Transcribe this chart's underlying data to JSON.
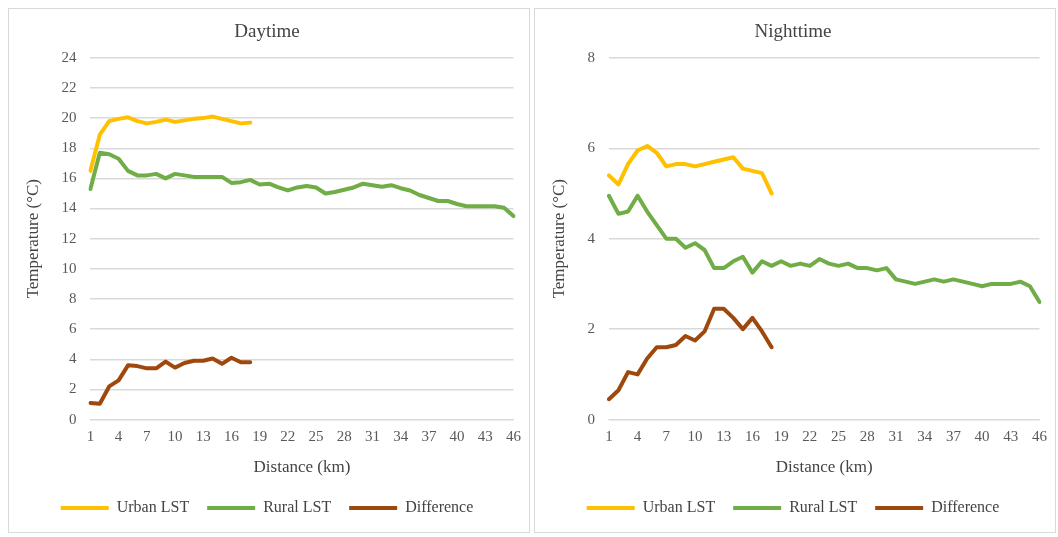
{
  "chart_data": [
    {
      "type": "line",
      "title": "Daytime",
      "xlabel": "Distance (km)",
      "ylabel": "Temperature (°C)",
      "categories": [
        "1",
        null,
        null,
        "4",
        null,
        null,
        "7",
        null,
        null,
        "10",
        null,
        null,
        "13",
        null,
        null,
        "16",
        null,
        null,
        "19",
        null,
        null,
        "22",
        null,
        null,
        "25",
        null,
        null,
        "28",
        null,
        null,
        "31",
        null,
        null,
        "34",
        null,
        null,
        "37",
        null,
        null,
        "40",
        null,
        null,
        "43",
        null,
        null,
        "46"
      ],
      "series": [
        {
          "name": "Urban LST",
          "color": "#ffc000",
          "values": [
            16.5,
            18.9,
            19.8,
            19.95,
            20.05,
            19.8,
            19.65,
            19.75,
            19.9,
            19.75,
            19.85,
            19.95,
            20.0,
            20.1,
            19.95,
            19.8,
            19.65,
            19.7,
            null,
            null,
            null,
            null,
            null,
            null,
            null,
            null,
            null,
            null,
            null,
            null,
            null,
            null,
            null,
            null,
            null,
            null,
            null,
            null,
            null,
            null,
            null,
            null,
            null,
            null,
            null,
            null
          ]
        },
        {
          "name": "Rural LST",
          "color": "#70ad47",
          "values": [
            15.3,
            17.7,
            17.6,
            17.3,
            16.5,
            16.2,
            16.2,
            16.3,
            16.0,
            16.3,
            16.2,
            16.1,
            16.1,
            16.1,
            16.1,
            15.7,
            15.75,
            15.9,
            15.6,
            15.65,
            15.4,
            15.2,
            15.4,
            15.5,
            15.4,
            15.0,
            15.1,
            15.25,
            15.4,
            15.65,
            15.55,
            15.45,
            15.55,
            15.35,
            15.2,
            14.9,
            14.7,
            14.5,
            14.5,
            14.3,
            14.15,
            14.15,
            14.15,
            14.15,
            14.05,
            13.5
          ]
        },
        {
          "name": "Difference",
          "color": "#9e480e",
          "values": [
            1.1,
            1.05,
            2.2,
            2.6,
            3.6,
            3.55,
            3.4,
            3.4,
            3.85,
            3.45,
            3.75,
            3.9,
            3.9,
            4.05,
            3.7,
            4.1,
            3.8,
            3.8,
            null,
            null,
            null,
            null,
            null,
            null,
            null,
            null,
            null,
            null,
            null,
            null,
            null,
            null,
            null,
            null,
            null,
            null,
            null,
            null,
            null,
            null,
            null,
            null,
            null,
            null,
            null,
            null
          ]
        }
      ],
      "ylim": [
        0,
        24
      ],
      "yticks": [
        0,
        2,
        4,
        6,
        8,
        10,
        12,
        14,
        16,
        18,
        20,
        22,
        24
      ],
      "grid": "y",
      "legend": "bottom",
      "marker": "none",
      "line_style": "solid"
    },
    {
      "type": "line",
      "title": "Nighttime",
      "xlabel": "Distance (km)",
      "ylabel": "Temperature (°C)",
      "categories": [
        "1",
        null,
        null,
        "4",
        null,
        null,
        "7",
        null,
        null,
        "10",
        null,
        null,
        "13",
        null,
        null,
        "16",
        null,
        null,
        "19",
        null,
        null,
        "22",
        null,
        null,
        "25",
        null,
        null,
        "28",
        null,
        null,
        "31",
        null,
        null,
        "34",
        null,
        null,
        "37",
        null,
        null,
        "40",
        null,
        null,
        "43",
        null,
        null,
        "46"
      ],
      "series": [
        {
          "name": "Urban LST",
          "color": "#ffc000",
          "values": [
            5.4,
            5.2,
            5.65,
            5.95,
            6.05,
            5.9,
            5.6,
            5.65,
            5.65,
            5.6,
            5.65,
            5.7,
            5.75,
            5.8,
            5.55,
            5.5,
            5.45,
            5.0,
            null,
            null,
            null,
            null,
            null,
            null,
            null,
            null,
            null,
            null,
            null,
            null,
            null,
            null,
            null,
            null,
            null,
            null,
            null,
            null,
            null,
            null,
            null,
            null,
            null,
            null,
            null,
            null
          ]
        },
        {
          "name": "Rural LST",
          "color": "#70ad47",
          "values": [
            4.95,
            4.55,
            4.6,
            4.95,
            4.6,
            4.3,
            4.0,
            4.0,
            3.8,
            3.9,
            3.75,
            3.35,
            3.35,
            3.5,
            3.6,
            3.25,
            3.5,
            3.4,
            3.5,
            3.4,
            3.45,
            3.4,
            3.55,
            3.45,
            3.4,
            3.45,
            3.35,
            3.35,
            3.3,
            3.35,
            3.1,
            3.05,
            3.0,
            3.05,
            3.1,
            3.05,
            3.1,
            3.05,
            3.0,
            2.95,
            3.0,
            3.0,
            3.0,
            3.05,
            2.95,
            2.6
          ]
        },
        {
          "name": "Difference",
          "color": "#9e480e",
          "values": [
            0.45,
            0.65,
            1.05,
            1.0,
            1.35,
            1.6,
            1.6,
            1.65,
            1.85,
            1.75,
            1.95,
            2.45,
            2.45,
            2.25,
            2.0,
            2.25,
            1.95,
            1.6,
            null,
            null,
            null,
            null,
            null,
            null,
            null,
            null,
            null,
            null,
            null,
            null,
            null,
            null,
            null,
            null,
            null,
            null,
            null,
            null,
            null,
            null,
            null,
            null,
            null,
            null,
            null,
            null
          ]
        }
      ],
      "ylim": [
        0,
        8
      ],
      "yticks": [
        0,
        2,
        4,
        6,
        8
      ],
      "grid": "y",
      "legend": "bottom",
      "marker": "none",
      "line_style": "solid"
    }
  ]
}
